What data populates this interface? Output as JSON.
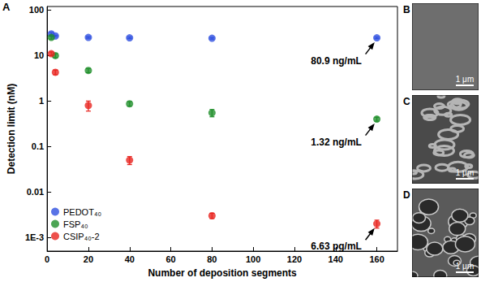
{
  "chart_data": {
    "type": "scatter",
    "x_label": "Number of deposition segments",
    "y_label": "Detection limit (nM)",
    "log": "y",
    "grid": false,
    "legend": "lower left",
    "marker": "circle",
    "x": [
      2,
      4,
      20,
      40,
      80,
      160
    ],
    "series": [
      {
        "name": "PEDOT₄₀",
        "color": "#3050e0",
        "values": [
          30,
          27,
          25,
          24.5,
          24,
          24.5
        ],
        "errors": [
          2,
          1,
          1,
          1,
          1,
          1
        ]
      },
      {
        "name": "FSP₄₀",
        "color": "#1f8f2a",
        "values": [
          25,
          10,
          4.7,
          0.87,
          0.55,
          0.4
        ],
        "errors": [
          2,
          1,
          0.5,
          0.1,
          0.1,
          0.04
        ]
      },
      {
        "name": "CSIP₄₀-2",
        "color": "#e8241f",
        "values": [
          11,
          4.3,
          0.8,
          0.05,
          0.003,
          0.002
        ],
        "errors": [
          1,
          0.5,
          0.2,
          0.01,
          0.0004,
          0.0004
        ]
      }
    ],
    "xlim": [
      0,
      170
    ],
    "xticks": [
      0,
      20,
      40,
      60,
      80,
      100,
      120,
      140,
      160
    ],
    "ylim": [
      0.0005,
      120
    ],
    "yticks": [
      {
        "value": 0.001,
        "label": "1E-3"
      },
      0.01,
      0.1,
      1,
      10,
      100
    ],
    "annotations": [
      {
        "text": "80.9 ng/mL",
        "x": 160,
        "y": 24.5
      },
      {
        "text": "1.32 ng/mL",
        "x": 160,
        "y": 0.4
      },
      {
        "text": "6.63 pg/mL",
        "x": 160,
        "y": 0.002
      }
    ]
  },
  "panel_label": "A",
  "images": [
    {
      "label": "B",
      "scale_bar": "1 μm"
    },
    {
      "label": "C",
      "scale_bar": "1 μm"
    },
    {
      "label": "D",
      "scale_bar": "1 μm"
    }
  ]
}
